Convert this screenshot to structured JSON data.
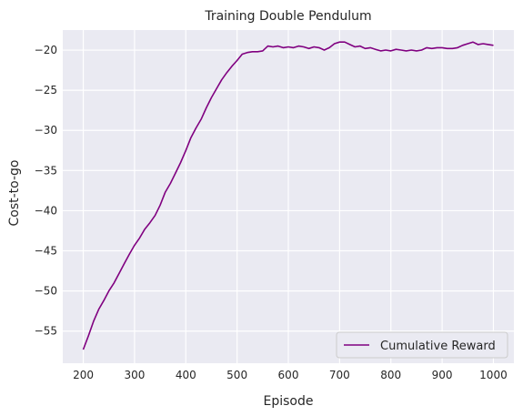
{
  "chart_data": {
    "type": "line",
    "title": "Training Double Pendulum",
    "xlabel": "Episode",
    "ylabel": "Cost-to-go",
    "xlim": [
      160,
      1040
    ],
    "ylim": [
      -59.0,
      -17.5
    ],
    "xticks": [
      200,
      300,
      400,
      500,
      600,
      700,
      800,
      900,
      1000
    ],
    "yticks": [
      -55,
      -50,
      -45,
      -40,
      -35,
      -30,
      -25,
      -20
    ],
    "grid": true,
    "background_color": "#eaeaf2",
    "grid_color": "#ffffff",
    "legend_position": "lower-right",
    "series": [
      {
        "name": "Cumulative Reward",
        "color": "#800080",
        "x": [
          200,
          210,
          220,
          230,
          240,
          250,
          260,
          270,
          280,
          290,
          300,
          310,
          320,
          330,
          340,
          350,
          360,
          370,
          380,
          390,
          400,
          410,
          420,
          430,
          440,
          450,
          460,
          470,
          480,
          490,
          500,
          510,
          520,
          530,
          540,
          550,
          560,
          570,
          580,
          590,
          600,
          610,
          620,
          630,
          640,
          650,
          660,
          670,
          680,
          690,
          700,
          710,
          720,
          730,
          740,
          750,
          760,
          770,
          780,
          790,
          800,
          810,
          820,
          830,
          840,
          850,
          860,
          870,
          880,
          890,
          900,
          910,
          920,
          930,
          940,
          950,
          960,
          970,
          980,
          990,
          1000
        ],
        "y": [
          -57.3,
          -55.6,
          -53.8,
          -52.3,
          -51.2,
          -50.0,
          -49.0,
          -47.8,
          -46.6,
          -45.4,
          -44.3,
          -43.4,
          -42.3,
          -41.5,
          -40.6,
          -39.3,
          -37.7,
          -36.6,
          -35.3,
          -34.0,
          -32.5,
          -30.9,
          -29.7,
          -28.6,
          -27.2,
          -25.9,
          -24.8,
          -23.7,
          -22.8,
          -22.0,
          -21.3,
          -20.5,
          -20.3,
          -20.2,
          -20.2,
          -20.1,
          -19.5,
          -19.6,
          -19.5,
          -19.7,
          -19.6,
          -19.7,
          -19.5,
          -19.6,
          -19.8,
          -19.6,
          -19.7,
          -20.0,
          -19.7,
          -19.2,
          -19.0,
          -19.0,
          -19.3,
          -19.6,
          -19.5,
          -19.8,
          -19.7,
          -19.9,
          -20.1,
          -20.0,
          -20.1,
          -19.9,
          -20.0,
          -20.1,
          -20.0,
          -20.1,
          -20.0,
          -19.7,
          -19.8,
          -19.7,
          -19.7,
          -19.8,
          -19.8,
          -19.7,
          -19.4,
          -19.2,
          -19.0,
          -19.3,
          -19.2,
          -19.3,
          -19.4
        ]
      }
    ]
  }
}
